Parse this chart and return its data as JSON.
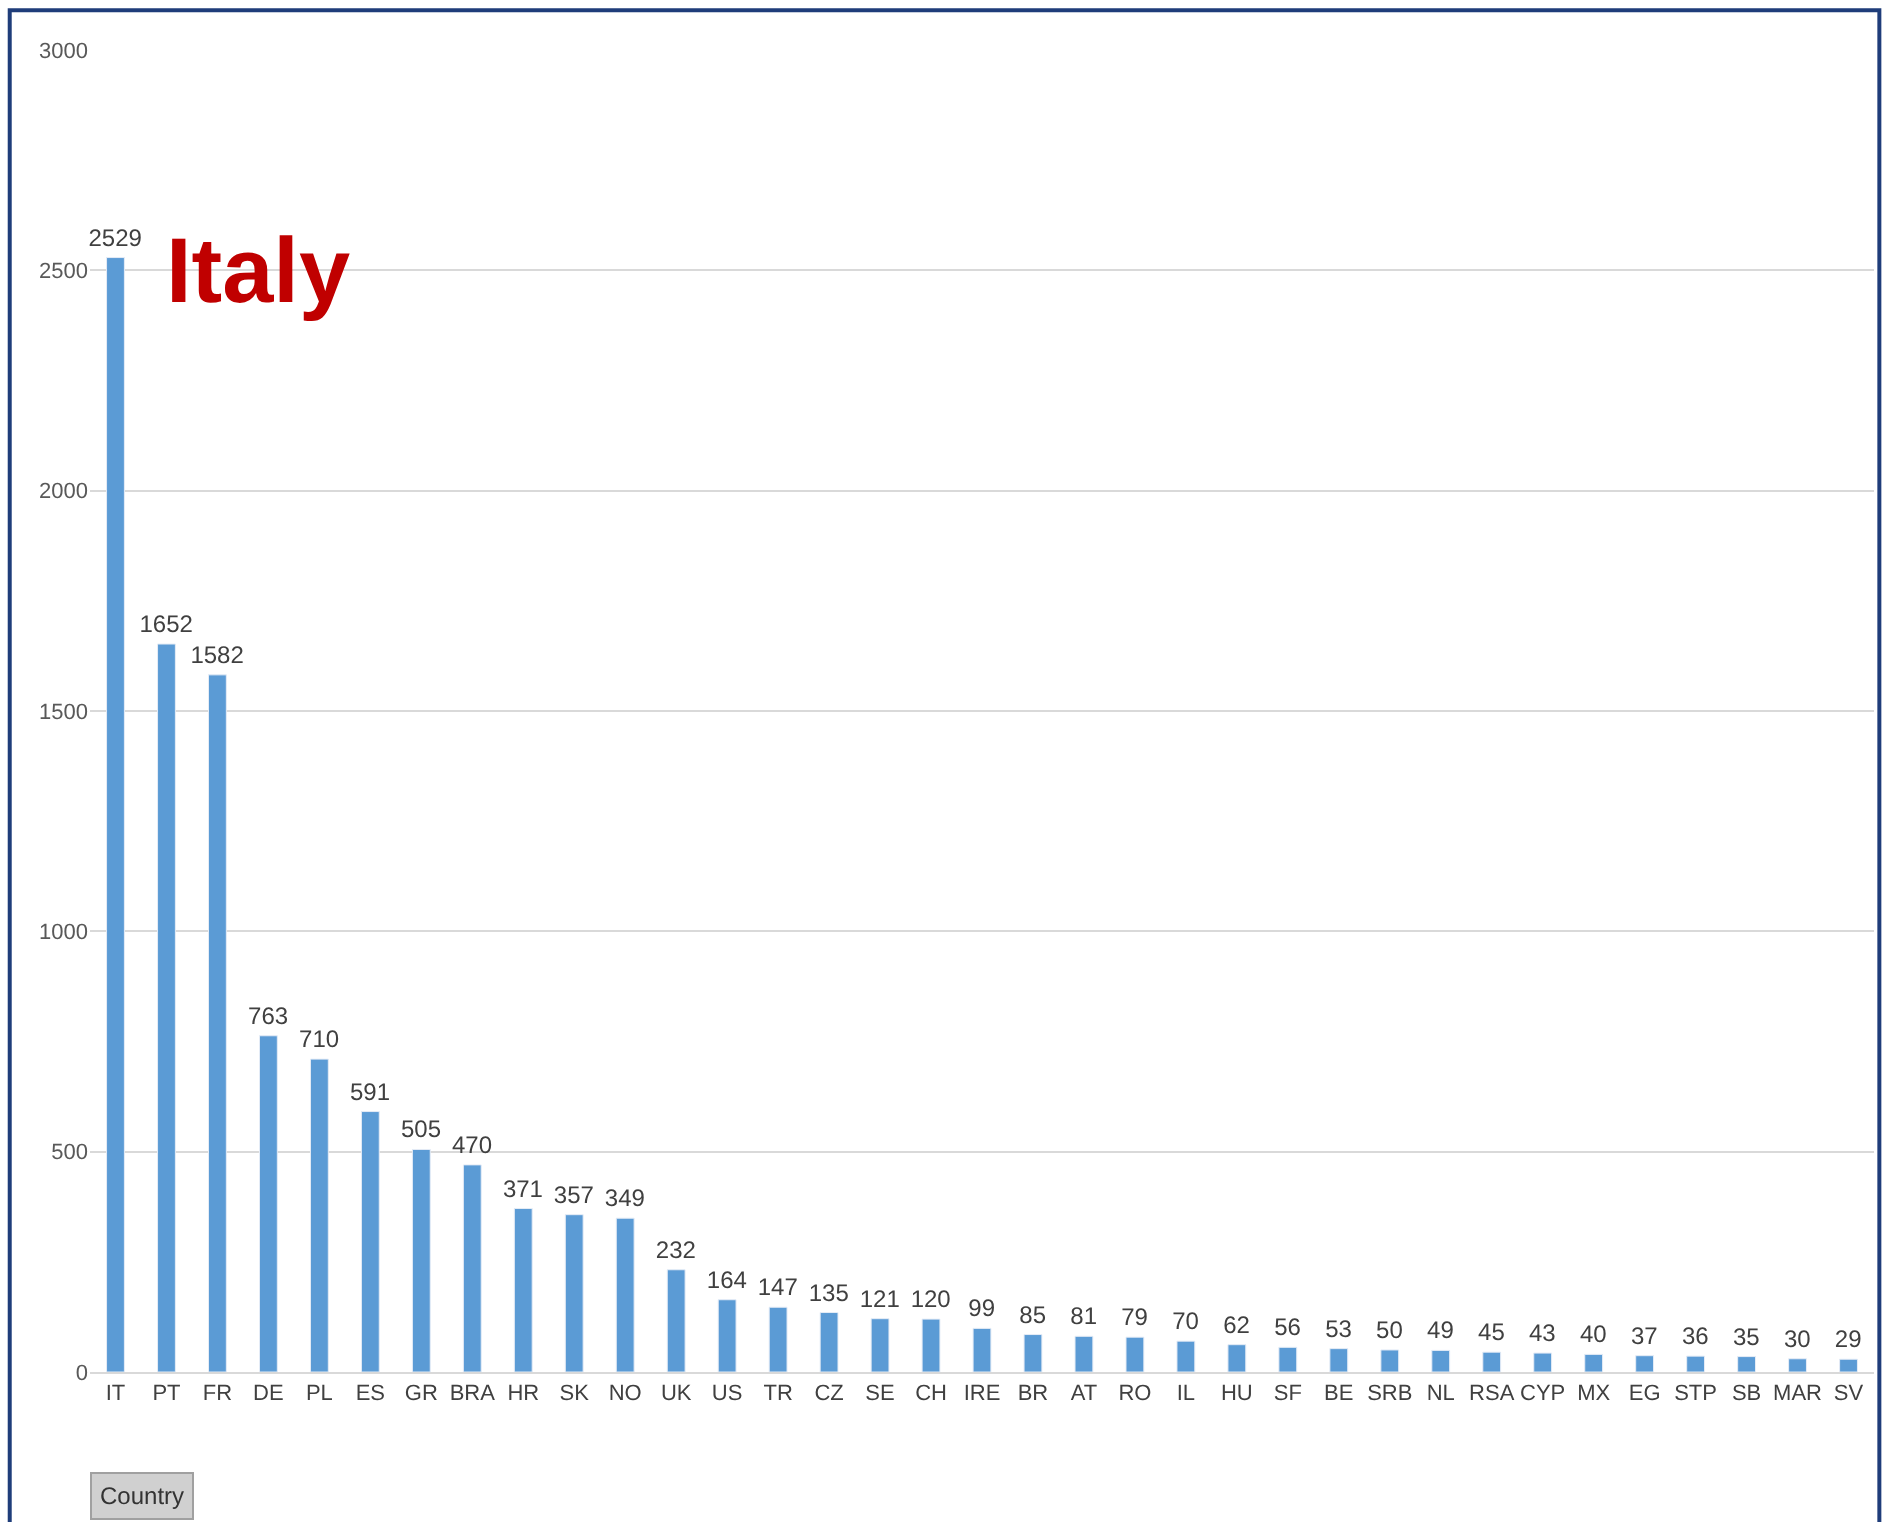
{
  "chart_data": {
    "type": "bar",
    "categories": [
      "IT",
      "PT",
      "FR",
      "DE",
      "PL",
      "ES",
      "GR",
      "BRA",
      "HR",
      "SK",
      "NO",
      "UK",
      "US",
      "TR",
      "CZ",
      "SE",
      "CH",
      "IRE",
      "BR",
      "AT",
      "RO",
      "IL",
      "HU",
      "SF",
      "BE",
      "SRB",
      "NL",
      "RSA",
      "CYP",
      "MX",
      "EG",
      "STP",
      "SB",
      "MAR",
      "SV"
    ],
    "values": [
      2529,
      1652,
      1582,
      763,
      710,
      591,
      505,
      470,
      371,
      357,
      349,
      232,
      164,
      147,
      135,
      121,
      120,
      99,
      85,
      81,
      79,
      70,
      62,
      56,
      53,
      50,
      49,
      45,
      43,
      40,
      37,
      36,
      35,
      30,
      29
    ],
    "color": "#5b9bd5",
    "ylim": [
      0,
      3000
    ],
    "yticks": [
      0,
      500,
      1000,
      1500,
      2000,
      2500,
      3000
    ],
    "grid": "y",
    "data_labels": true,
    "legend": false,
    "annotations": [
      "Italy",
      "Country"
    ]
  }
}
